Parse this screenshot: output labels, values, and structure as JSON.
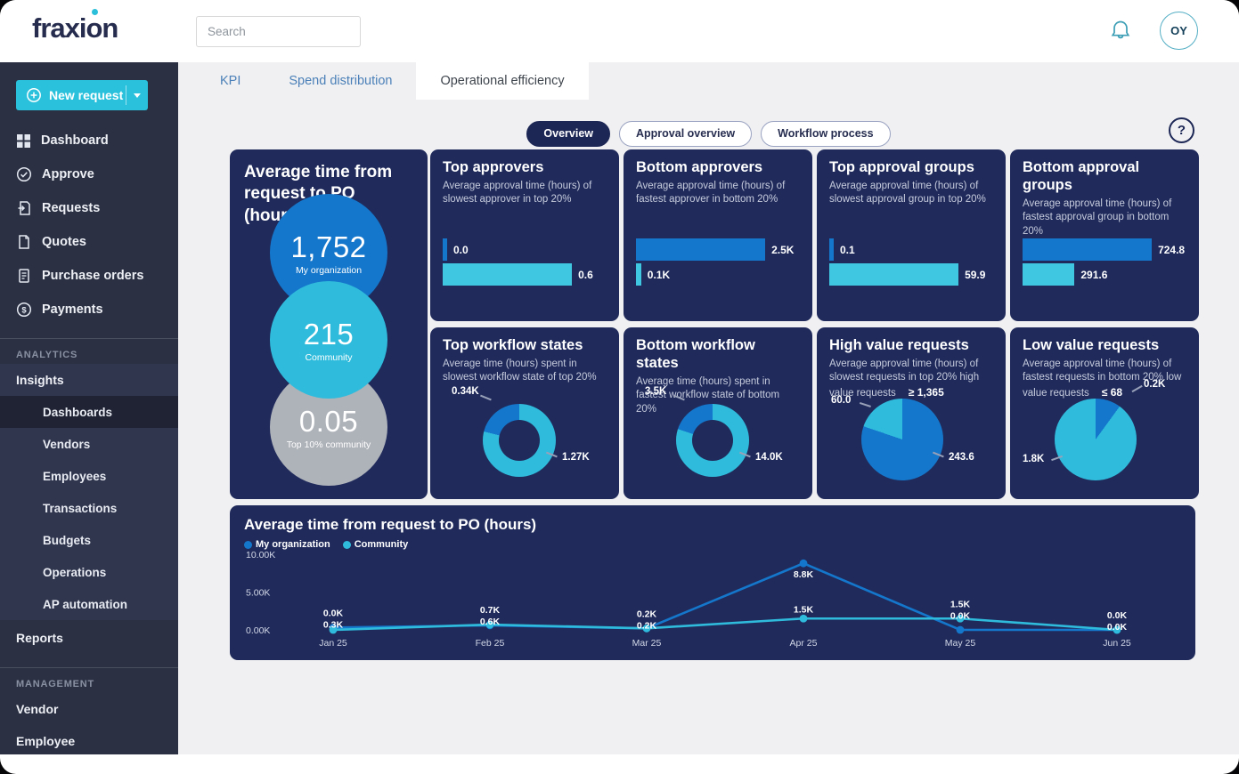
{
  "theme": {
    "blue": "#1577CB",
    "cyan": "#38C1DF",
    "gray": "#AEB2B9",
    "navy": "#202B5C",
    "accent": "#29C1DB"
  },
  "header": {
    "logo_prefix": "fraxi",
    "logo_o": "o",
    "logo_suffix": "n",
    "search_placeholder": "Search",
    "avatar_initials": "OY"
  },
  "sidebar": {
    "new_request": "New request",
    "items": [
      {
        "label": "Dashboard"
      },
      {
        "label": "Approve"
      },
      {
        "label": "Requests"
      },
      {
        "label": "Quotes"
      },
      {
        "label": "Purchase orders"
      },
      {
        "label": "Payments"
      }
    ],
    "analytics": "ANALYTICS",
    "insights": "Insights",
    "insights_items": [
      {
        "label": "Dashboards"
      },
      {
        "label": "Vendors"
      },
      {
        "label": "Employees"
      },
      {
        "label": "Transactions"
      },
      {
        "label": "Budgets"
      },
      {
        "label": "Operations"
      },
      {
        "label": "AP automation"
      }
    ],
    "reports": "Reports",
    "management": "MANAGEMENT",
    "vendor": "Vendor",
    "employee": "Employee"
  },
  "tabs": {
    "items": [
      {
        "label": "KPI"
      },
      {
        "label": "Spend distribution"
      },
      {
        "label": "Operational efficiency"
      }
    ]
  },
  "pills": {
    "items": [
      {
        "label": "Overview"
      },
      {
        "label": "Approval overview"
      },
      {
        "label": "Workflow process"
      }
    ]
  },
  "help_glyph": "?",
  "chart_data": [
    {
      "type": "circles",
      "title": "Average time from request to PO (hours)",
      "points": [
        {
          "value": "1,752",
          "label": "My organization",
          "color": "#1577CB"
        },
        {
          "value": "215",
          "label": "Community",
          "color": "#2FBCDC"
        },
        {
          "value": "0.05",
          "label": "Top 10% community",
          "color": "#AEB2B9"
        }
      ]
    },
    {
      "type": "bar",
      "title": "Top approvers",
      "subtitle": "Average approval time (hours) of slowest approver in top 20%",
      "bars": [
        {
          "label": "0.0",
          "value": 0.0,
          "color": "#1577CB"
        },
        {
          "label": "0.6",
          "value": 0.6,
          "color": "#3FC6E1"
        }
      ]
    },
    {
      "type": "bar",
      "title": "Bottom approvers",
      "subtitle": "Average approval time (hours) of fastest approver in bottom 20%",
      "bars": [
        {
          "label": "2.5K",
          "value": 2.5,
          "color": "#1577CB"
        },
        {
          "label": "0.1K",
          "value": 0.1,
          "color": "#3FC6E1"
        }
      ]
    },
    {
      "type": "bar",
      "title": "Top approval groups",
      "subtitle": "Average approval time (hours) of slowest approval group in top 20%",
      "bars": [
        {
          "label": "0.1",
          "value": 0.1,
          "color": "#1577CB"
        },
        {
          "label": "59.9",
          "value": 59.9,
          "color": "#3FC6E1"
        }
      ]
    },
    {
      "type": "bar",
      "title": "Bottom approval groups",
      "subtitle": "Average approval time (hours) of fastest approval group in bottom 20%",
      "bars": [
        {
          "label": "724.8",
          "value": 724.8,
          "color": "#1577CB"
        },
        {
          "label": "291.6",
          "value": 291.6,
          "color": "#3FC6E1"
        }
      ]
    },
    {
      "type": "donut",
      "title": "Top workflow states",
      "subtitle": "Average time (hours) spent in slowest workflow state of top 20%",
      "slices": [
        {
          "label": "1.27K",
          "value": 1.27,
          "color": "#2FBCDC",
          "anchor": "br"
        },
        {
          "label": "0.34K",
          "value": 0.34,
          "color": "#1577CB",
          "anchor": "tl"
        }
      ]
    },
    {
      "type": "donut",
      "title": "Bottom workflow states",
      "subtitle": "Average time (hours) spent in fastest workflow state of bottom 20%",
      "slices": [
        {
          "label": "14.0K",
          "value": 14.0,
          "color": "#2FBCDC",
          "anchor": "br"
        },
        {
          "label": "3.5K",
          "value": 3.5,
          "color": "#1577CB",
          "anchor": "tl"
        }
      ]
    },
    {
      "type": "pie",
      "title": "High value requests",
      "subtitle": "Average approval time (hours) of slowest requests in top 20% high value requests",
      "threshold": "≥ 1,365",
      "slices": [
        {
          "label": "243.6",
          "value": 243.6,
          "color": "#1577CB",
          "anchor": "br"
        },
        {
          "label": "60.0",
          "value": 60.0,
          "color": "#2FBCDC",
          "anchor": "l"
        }
      ]
    },
    {
      "type": "pie",
      "title": "Low value requests",
      "subtitle": "Average approval time (hours) of fastest requests in bottom 20% low value requests",
      "threshold": "≤ 68",
      "slices": [
        {
          "label": "0.2K",
          "value": 0.2,
          "color": "#1577CB",
          "anchor": "tr"
        },
        {
          "label": "1.8K",
          "value": 1.8,
          "color": "#2FBCDC",
          "anchor": "bl"
        }
      ]
    },
    {
      "type": "line",
      "title": "Average time from request to PO (hours)",
      "y_ticks": [
        "10.00K",
        "5.00K",
        "0.00K"
      ],
      "ylim": [
        0,
        10
      ],
      "x": [
        "Jan 25",
        "Feb 25",
        "Mar 25",
        "Apr 25",
        "May 25",
        "Jun 25"
      ],
      "legend_position": "top-left",
      "grid": false,
      "series": [
        {
          "name": "My organization",
          "color": "#1577CB",
          "values": [
            0.3,
            0.6,
            0.2,
            8.8,
            0.0,
            0.0
          ],
          "labels": [
            "0.3K",
            "0.6K",
            "0.2K",
            "8.8K",
            "0.0K",
            "0.0K"
          ]
        },
        {
          "name": "Community",
          "color": "#2FBCDC",
          "values": [
            0.0,
            0.7,
            0.2,
            1.5,
            1.5,
            0.0
          ],
          "labels": [
            "0.0K",
            "0.7K",
            "0.2K",
            "1.5K",
            "1.5K",
            "0.0K"
          ]
        }
      ]
    }
  ]
}
